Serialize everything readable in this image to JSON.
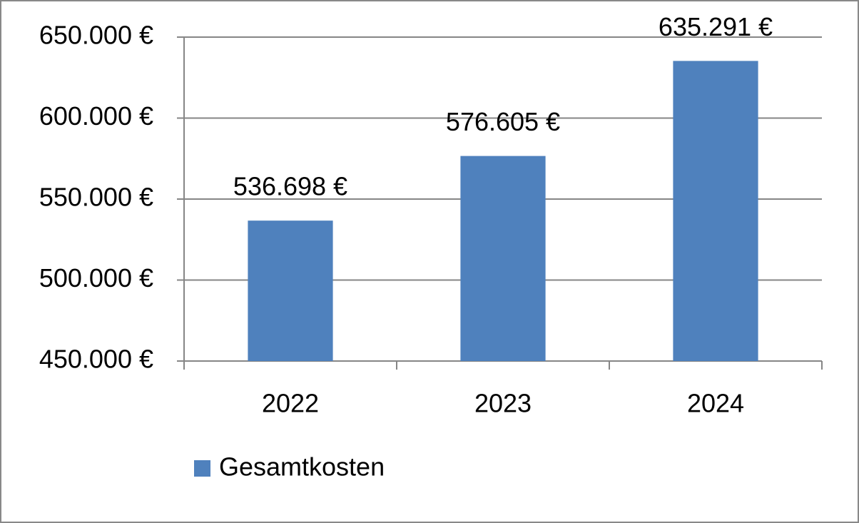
{
  "chart_data": {
    "type": "bar",
    "categories": [
      "2022",
      "2023",
      "2024"
    ],
    "series": [
      {
        "name": "Gesamtkosten",
        "color": "#4f81bd",
        "values": [
          536698,
          576605,
          635291
        ],
        "value_labels": [
          "536.698 €",
          "576.605 €",
          "635.291 €"
        ]
      }
    ],
    "ylim": [
      450000,
      650000
    ],
    "yticks": [
      {
        "value": 450000,
        "label": "450.000 €"
      },
      {
        "value": 500000,
        "label": "500.000 €"
      },
      {
        "value": 550000,
        "label": "550.000 €"
      },
      {
        "value": 600000,
        "label": "600.000 €"
      },
      {
        "value": 650000,
        "label": "650.000 €"
      }
    ],
    "grid": true,
    "legend": "bottom"
  }
}
